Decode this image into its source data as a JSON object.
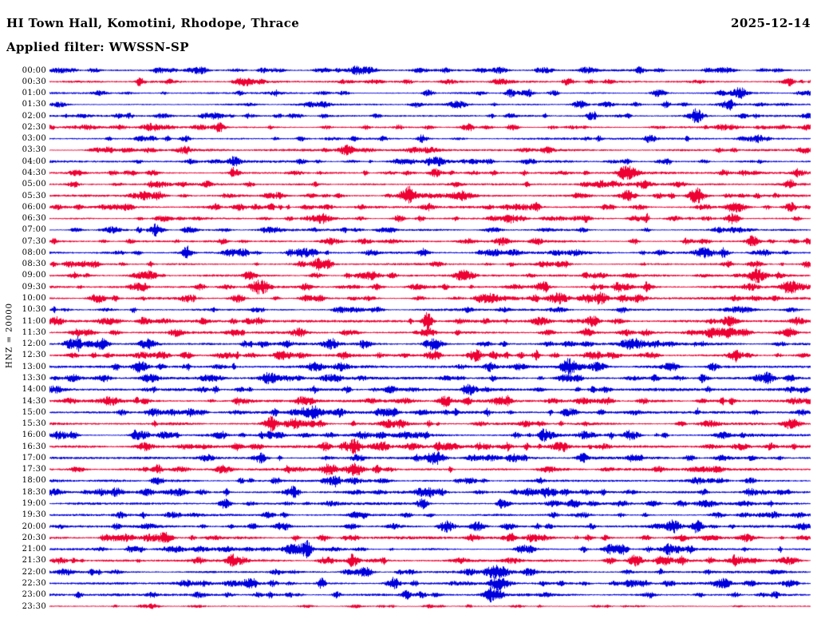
{
  "header": {
    "title": "HI Town Hall, Komotini, Rhodope, Thrace",
    "date": "2025-12-14",
    "filter_label": "Applied filter: WWSSN-SP"
  },
  "scale_label": "HNZ = 20000",
  "colors": {
    "blue": "#0000dd",
    "red": "#ee0033",
    "background": "#ffffff",
    "text": "#000000"
  },
  "chart_data": {
    "type": "line",
    "title": "HI Town Hall, Komotini, Rhodope, Thrace",
    "date": "2025-12-14",
    "filter": "WWSSN-SP",
    "channel": "HNZ",
    "scale": 20000,
    "row_duration_minutes": 30,
    "x_range_minutes": [
      0,
      30
    ],
    "grid": false,
    "legend": "none",
    "rows": [
      {
        "time": "00:00",
        "color": "blue",
        "noise_amp": 1.0,
        "events": [
          [
            0.28,
            2.6,
            6
          ],
          [
            0.52,
            2.2,
            5
          ],
          [
            0.8,
            2.6,
            6
          ]
        ]
      },
      {
        "time": "00:30",
        "color": "red",
        "noise_amp": 1.0,
        "events": [
          [
            0.12,
            2.2,
            5
          ],
          [
            0.47,
            2.6,
            6
          ],
          [
            0.97,
            3.0,
            8
          ]
        ]
      },
      {
        "time": "01:00",
        "color": "blue",
        "noise_amp": 0.9,
        "events": [
          [
            0.25,
            2.2,
            5
          ],
          [
            0.63,
            2.2,
            5
          ]
        ]
      },
      {
        "time": "01:30",
        "color": "blue",
        "noise_amp": 0.9,
        "events": [
          [
            0.36,
            3.0,
            8
          ],
          [
            0.77,
            2.2,
            5
          ]
        ]
      },
      {
        "time": "02:00",
        "color": "blue",
        "noise_amp": 0.9,
        "events": [
          [
            0.3,
            2.2,
            6
          ],
          [
            0.85,
            2.6,
            6
          ]
        ]
      },
      {
        "time": "02:30",
        "color": "red",
        "noise_amp": 1.0,
        "events": [
          [
            0.22,
            2.2,
            5
          ],
          [
            0.55,
            2.6,
            6
          ],
          [
            0.66,
            2.2,
            5
          ]
        ]
      },
      {
        "time": "03:00",
        "color": "blue",
        "noise_amp": 1.0,
        "events": [
          [
            0.4,
            2.2,
            5
          ],
          [
            0.79,
            3.0,
            7
          ]
        ]
      },
      {
        "time": "03:30",
        "color": "red",
        "noise_amp": 1.1,
        "events": [
          [
            0.5,
            2.6,
            10
          ],
          [
            0.88,
            2.6,
            6
          ]
        ]
      },
      {
        "time": "04:00",
        "color": "blue",
        "noise_amp": 1.1,
        "events": [
          [
            0.33,
            2.6,
            6
          ],
          [
            0.51,
            4.0,
            10
          ]
        ]
      },
      {
        "time": "04:30",
        "color": "red",
        "noise_amp": 1.1,
        "events": [
          [
            0.47,
            2.6,
            6
          ],
          [
            0.76,
            6.5,
            12
          ]
        ]
      },
      {
        "time": "05:00",
        "color": "red",
        "noise_amp": 1.1,
        "events": [
          [
            0.78,
            4.5,
            10
          ],
          [
            0.97,
            3.0,
            6
          ]
        ]
      },
      {
        "time": "05:30",
        "color": "red",
        "noise_amp": 1.1,
        "events": [
          [
            0.3,
            3.5,
            8
          ],
          [
            0.76,
            3.5,
            8
          ],
          [
            0.85,
            6.0,
            9
          ]
        ]
      },
      {
        "time": "06:00",
        "color": "red",
        "noise_amp": 1.1,
        "events": [
          [
            0.25,
            4.0,
            8
          ],
          [
            0.29,
            3.0,
            6
          ],
          [
            0.6,
            2.6,
            6
          ]
        ]
      },
      {
        "time": "06:30",
        "color": "red",
        "noise_amp": 1.0,
        "events": [
          [
            0.62,
            2.6,
            6
          ],
          [
            0.9,
            2.6,
            6
          ]
        ]
      },
      {
        "time": "07:00",
        "color": "blue",
        "noise_amp": 1.0,
        "events": [
          [
            0.45,
            2.2,
            5
          ],
          [
            0.7,
            2.6,
            6
          ]
        ]
      },
      {
        "time": "07:30",
        "color": "red",
        "noise_amp": 1.1,
        "events": [
          [
            0.64,
            3.5,
            8
          ],
          [
            0.86,
            3.0,
            7
          ]
        ]
      },
      {
        "time": "08:00",
        "color": "blue",
        "noise_amp": 1.1,
        "events": [
          [
            0.86,
            5.5,
            12
          ],
          [
            0.94,
            3.0,
            7
          ]
        ]
      },
      {
        "time": "08:30",
        "color": "red",
        "noise_amp": 1.1,
        "events": [
          [
            0.33,
            2.6,
            6
          ],
          [
            0.65,
            3.5,
            8
          ]
        ]
      },
      {
        "time": "09:00",
        "color": "red",
        "noise_amp": 1.1,
        "events": [
          [
            0.45,
            2.6,
            6
          ],
          [
            0.93,
            3.0,
            7
          ]
        ]
      },
      {
        "time": "09:30",
        "color": "red",
        "noise_amp": 1.2,
        "events": [
          [
            0.27,
            4.5,
            9
          ],
          [
            0.43,
            3.5,
            7
          ]
        ]
      },
      {
        "time": "10:00",
        "color": "red",
        "noise_amp": 1.2,
        "events": [
          [
            0.72,
            3.5,
            9
          ],
          [
            0.9,
            2.6,
            6
          ]
        ]
      },
      {
        "time": "10:30",
        "color": "blue",
        "noise_amp": 1.1,
        "events": [
          [
            0.27,
            2.6,
            6
          ],
          [
            0.55,
            2.2,
            5
          ]
        ]
      },
      {
        "time": "11:00",
        "color": "red",
        "noise_amp": 1.2,
        "events": [
          [
            0.07,
            3.0,
            7
          ],
          [
            0.26,
            3.0,
            7
          ]
        ]
      },
      {
        "time": "11:30",
        "color": "red",
        "noise_amp": 1.2,
        "events": [
          [
            0.05,
            4.0,
            9
          ],
          [
            0.33,
            3.5,
            8
          ]
        ]
      },
      {
        "time": "12:00",
        "color": "blue",
        "noise_amp": 1.2,
        "events": [
          [
            0.28,
            3.0,
            7
          ],
          [
            0.37,
            2.6,
            6
          ]
        ]
      },
      {
        "time": "12:30",
        "color": "red",
        "noise_amp": 1.3,
        "events": [
          [
            0.5,
            3.5,
            8
          ],
          [
            0.71,
            3.5,
            8
          ],
          [
            0.9,
            4.5,
            10
          ]
        ]
      },
      {
        "time": "13:00",
        "color": "blue",
        "noise_amp": 1.3,
        "events": [
          [
            0.68,
            5.0,
            10
          ],
          [
            0.72,
            4.5,
            9
          ]
        ]
      },
      {
        "time": "13:30",
        "color": "blue",
        "noise_amp": 1.2,
        "events": [
          [
            0.54,
            2.6,
            6
          ],
          [
            0.86,
            2.6,
            6
          ]
        ]
      },
      {
        "time": "14:00",
        "color": "blue",
        "noise_amp": 1.3,
        "events": [
          [
            0.25,
            2.6,
            6
          ],
          [
            0.55,
            3.5,
            8
          ]
        ]
      },
      {
        "time": "14:30",
        "color": "red",
        "noise_amp": 1.3,
        "events": [
          [
            0.52,
            3.0,
            7
          ],
          [
            0.78,
            2.6,
            6
          ]
        ]
      },
      {
        "time": "15:00",
        "color": "blue",
        "noise_amp": 1.3,
        "events": [
          [
            0.14,
            3.0,
            7
          ],
          [
            0.45,
            2.6,
            6
          ]
        ]
      },
      {
        "time": "15:30",
        "color": "red",
        "noise_amp": 1.3,
        "events": [
          [
            0.29,
            5.0,
            9
          ],
          [
            0.46,
            3.5,
            8
          ]
        ]
      },
      {
        "time": "16:00",
        "color": "blue",
        "noise_amp": 1.3,
        "events": [
          [
            0.22,
            2.6,
            6
          ],
          [
            0.76,
            3.0,
            7
          ]
        ]
      },
      {
        "time": "16:30",
        "color": "red",
        "noise_amp": 1.3,
        "events": [
          [
            0.4,
            2.6,
            6
          ],
          [
            0.6,
            2.6,
            6
          ]
        ]
      },
      {
        "time": "17:00",
        "color": "blue",
        "noise_amp": 1.2,
        "events": [
          [
            0.61,
            4.0,
            9
          ],
          [
            0.7,
            2.6,
            6
          ]
        ]
      },
      {
        "time": "17:30",
        "color": "red",
        "noise_amp": 1.2,
        "events": [
          [
            0.37,
            3.5,
            8
          ],
          [
            0.8,
            2.6,
            6
          ]
        ]
      },
      {
        "time": "18:00",
        "color": "blue",
        "noise_amp": 1.2,
        "events": [
          [
            0.37,
            3.5,
            8
          ],
          [
            0.92,
            3.0,
            7
          ]
        ]
      },
      {
        "time": "18:30",
        "color": "blue",
        "noise_amp": 1.2,
        "events": [
          [
            0.2,
            2.6,
            6
          ],
          [
            0.65,
            2.6,
            6
          ]
        ]
      },
      {
        "time": "19:00",
        "color": "blue",
        "noise_amp": 1.2,
        "events": [
          [
            0.23,
            3.5,
            8
          ],
          [
            0.6,
            2.6,
            6
          ],
          [
            0.83,
            3.0,
            7
          ]
        ]
      },
      {
        "time": "19:30",
        "color": "blue",
        "noise_amp": 1.1,
        "events": [
          [
            0.5,
            2.2,
            5
          ],
          [
            0.75,
            2.2,
            5
          ]
        ]
      },
      {
        "time": "20:00",
        "color": "blue",
        "noise_amp": 1.2,
        "events": [
          [
            0.3,
            2.6,
            6
          ],
          [
            0.82,
            5.0,
            9
          ],
          [
            0.85,
            4.5,
            8
          ]
        ]
      },
      {
        "time": "20:30",
        "color": "red",
        "noise_amp": 1.2,
        "events": [
          [
            0.1,
            2.6,
            6
          ],
          [
            0.83,
            3.0,
            7
          ]
        ]
      },
      {
        "time": "21:00",
        "color": "blue",
        "noise_amp": 1.2,
        "events": [
          [
            0.63,
            3.5,
            8
          ],
          [
            0.75,
            3.0,
            7
          ]
        ]
      },
      {
        "time": "21:30",
        "color": "red",
        "noise_amp": 1.2,
        "events": [
          [
            0.4,
            2.6,
            6
          ],
          [
            0.77,
            3.5,
            8
          ]
        ]
      },
      {
        "time": "22:00",
        "color": "blue",
        "noise_amp": 1.2,
        "events": [
          [
            0.59,
            7.0,
            12
          ],
          [
            0.63,
            3.5,
            8
          ]
        ]
      },
      {
        "time": "22:30",
        "color": "blue",
        "noise_amp": 1.2,
        "events": [
          [
            0.59,
            3.5,
            8
          ],
          [
            0.92,
            3.0,
            7
          ]
        ]
      },
      {
        "time": "23:00",
        "color": "blue",
        "noise_amp": 1.2,
        "events": [
          [
            0.58,
            4.0,
            9
          ],
          [
            0.9,
            2.6,
            6
          ]
        ]
      },
      {
        "time": "23:30",
        "color": "red",
        "noise_amp": 0.6,
        "events": [
          [
            0.45,
            1.5,
            4
          ]
        ]
      }
    ]
  }
}
